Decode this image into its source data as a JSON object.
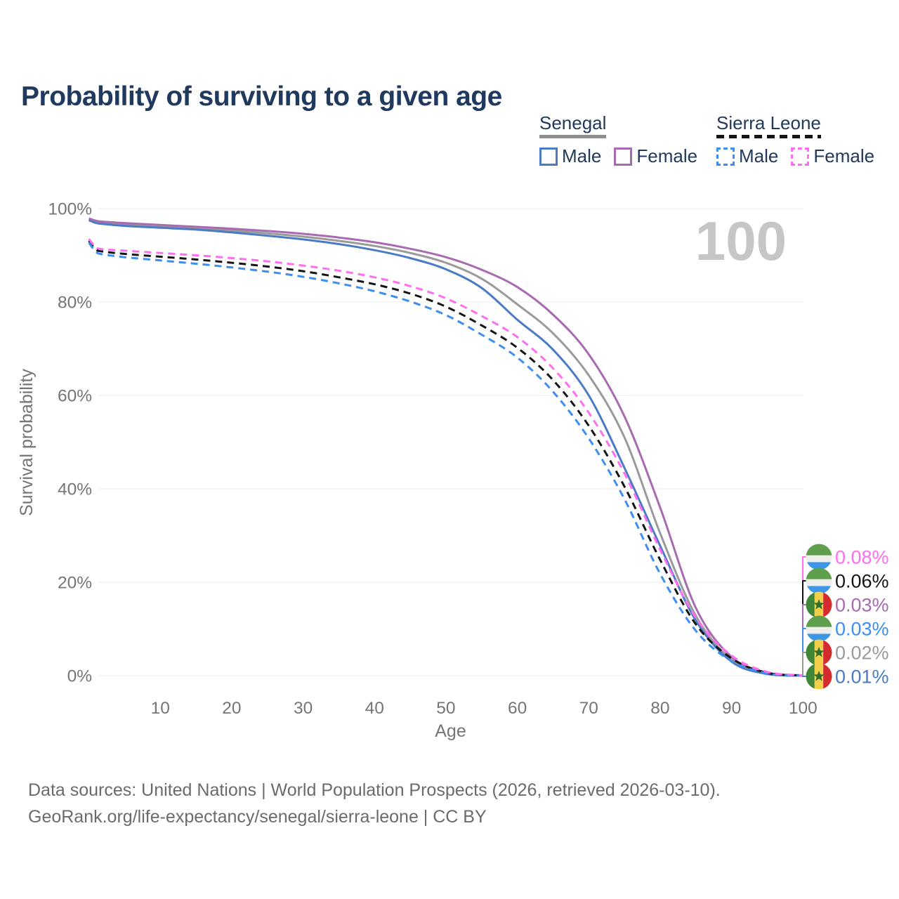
{
  "page": {
    "title": "Probability of surviving to a given age"
  },
  "legend": {
    "groups": [
      {
        "name": "Senegal",
        "line_style": "solid",
        "line_color": "#8f8f8f",
        "items": [
          {
            "label": "Male",
            "color": "#4a7bc4",
            "dashed": false
          },
          {
            "label": "Female",
            "color": "#a86ab0",
            "dashed": false
          }
        ]
      },
      {
        "name": "Sierra Leone",
        "line_style": "dashed",
        "line_color": "#141414",
        "items": [
          {
            "label": "Male",
            "color": "#3d8ef0",
            "dashed": true
          },
          {
            "label": "Female",
            "color": "#ff6ef0",
            "dashed": true
          }
        ]
      }
    ]
  },
  "watermark": "100",
  "footer": {
    "line1": "Data sources: United Nations | World Population Prospects (2026, retrieved 2026-03-10).",
    "line2": "GeoRank.org/life-expectancy/senegal/sierra-leone | CC BY"
  },
  "chart_data": {
    "type": "line",
    "title": "Probability of surviving to a given age",
    "xlabel": "Age",
    "ylabel": "Survival probability",
    "xlim": [
      0,
      100
    ],
    "ylim_percent": [
      0,
      100
    ],
    "grid": "horizontal",
    "legend_position": "top-right",
    "x_ticks": [
      10,
      20,
      30,
      40,
      50,
      60,
      70,
      80,
      90,
      100
    ],
    "y_ticks": [
      {
        "label": "100%",
        "value": 100
      },
      {
        "label": "80%",
        "value": 80
      },
      {
        "label": "60%",
        "value": 60
      },
      {
        "label": "40%",
        "value": 40
      },
      {
        "label": "20%",
        "value": 20
      },
      {
        "label": "0%",
        "value": 0
      }
    ],
    "x": [
      0,
      1,
      2,
      5,
      10,
      15,
      20,
      25,
      30,
      35,
      40,
      45,
      50,
      55,
      60,
      65,
      70,
      75,
      80,
      85,
      90,
      95,
      100
    ],
    "series": [
      {
        "id": "senegal-both",
        "name": "Senegal",
        "country": "Senegal",
        "sex": "Both",
        "color": "#9a9a9a",
        "dashed": false,
        "flag": "senegal",
        "end_label": "0.02%",
        "end_label_row": 4,
        "values": [
          97.7,
          97.2,
          97.0,
          96.6,
          96.2,
          95.8,
          95.3,
          94.7,
          94.0,
          93.1,
          92.0,
          90.5,
          88.4,
          85.0,
          79.5,
          73.3,
          64.3,
          51.0,
          30.5,
          12.8,
          3.4,
          0.45,
          0.02
        ]
      },
      {
        "id": "senegal-male",
        "name": "Senegal Male",
        "country": "Senegal",
        "sex": "Male",
        "color": "#4a7bc4",
        "dashed": false,
        "flag": "senegal",
        "end_label": "0.01%",
        "end_label_row": 5,
        "values": [
          97.5,
          96.9,
          96.7,
          96.3,
          95.9,
          95.5,
          94.9,
          94.2,
          93.4,
          92.4,
          91.1,
          89.4,
          87.0,
          83.0,
          76.2,
          69.8,
          60.0,
          44.5,
          27.8,
          11.8,
          3.0,
          0.35,
          0.01
        ]
      },
      {
        "id": "senegal-female",
        "name": "Senegal Female",
        "country": "Senegal",
        "sex": "Female",
        "color": "#a86ab0",
        "dashed": false,
        "flag": "senegal",
        "end_label": "0.03%",
        "end_label_row": 2,
        "values": [
          97.9,
          97.4,
          97.2,
          96.9,
          96.5,
          96.1,
          95.7,
          95.2,
          94.6,
          93.8,
          92.8,
          91.4,
          89.6,
          86.9,
          83.2,
          77.3,
          68.8,
          55.5,
          36.0,
          14.5,
          4.0,
          0.65,
          0.03
        ]
      },
      {
        "id": "sierra-leone-both",
        "name": "Sierra Leone",
        "country": "Sierra Leone",
        "sex": "Both",
        "color": "#141414",
        "dashed": true,
        "flag": "sierra-leone",
        "end_label": "0.06%",
        "end_label_row": 1,
        "values": [
          93.1,
          91.2,
          90.8,
          90.3,
          89.7,
          89.1,
          88.4,
          87.6,
          86.6,
          85.3,
          83.8,
          81.8,
          79.0,
          75.0,
          70.2,
          63.3,
          53.5,
          40.5,
          24.8,
          11.0,
          3.7,
          0.6,
          0.06
        ]
      },
      {
        "id": "sierra-leone-male",
        "name": "Sierra Leone Male",
        "country": "Sierra Leone",
        "sex": "Male",
        "color": "#3d8ef0",
        "dashed": true,
        "flag": "sierra-leone",
        "end_label": "0.03%",
        "end_label_row": 3,
        "values": [
          92.7,
          90.7,
          90.2,
          89.6,
          88.9,
          88.2,
          87.4,
          86.5,
          85.4,
          84.0,
          82.3,
          80.1,
          77.2,
          73.0,
          68.1,
          60.8,
          50.8,
          37.8,
          21.8,
          9.6,
          3.1,
          0.5,
          0.03
        ]
      },
      {
        "id": "sierra-leone-female",
        "name": "Sierra Leone Female",
        "country": "Sierra Leone",
        "sex": "Female",
        "color": "#ff6ef0",
        "dashed": true,
        "flag": "sierra-leone",
        "end_label": "0.08%",
        "end_label_row": 0,
        "values": [
          93.5,
          91.7,
          91.3,
          91.0,
          90.5,
          90.0,
          89.4,
          88.7,
          87.8,
          86.7,
          85.3,
          83.4,
          80.8,
          77.0,
          72.5,
          65.8,
          56.3,
          43.3,
          27.0,
          12.4,
          4.3,
          0.8,
          0.08
        ]
      }
    ]
  }
}
